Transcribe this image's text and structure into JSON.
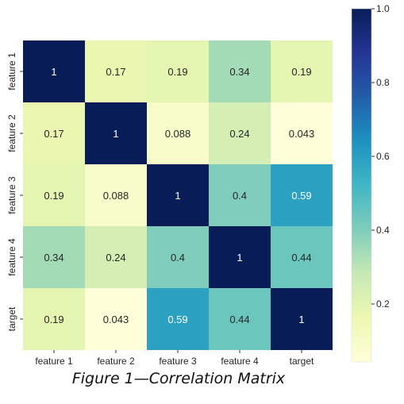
{
  "chart_data": {
    "type": "heatmap",
    "title": "",
    "xlabel": "",
    "ylabel": "",
    "x_categories": [
      "feature 1",
      "feature 2",
      "feature 3",
      "feature 4",
      "target"
    ],
    "y_categories": [
      "feature 1",
      "feature 2",
      "feature 3",
      "feature 4",
      "target"
    ],
    "values": [
      [
        1,
        0.17,
        0.19,
        0.34,
        0.19
      ],
      [
        0.17,
        1,
        0.088,
        0.24,
        0.043
      ],
      [
        0.19,
        0.088,
        1,
        0.4,
        0.59
      ],
      [
        0.34,
        0.24,
        0.4,
        1,
        0.44
      ],
      [
        0.19,
        0.043,
        0.59,
        0.44,
        1
      ]
    ],
    "annotations": [
      [
        "1",
        "0.17",
        "0.19",
        "0.34",
        "0.19"
      ],
      [
        "0.17",
        "1",
        "0.088",
        "0.24",
        "0.043"
      ],
      [
        "0.19",
        "0.088",
        "1",
        "0.4",
        "0.59"
      ],
      [
        "0.34",
        "0.24",
        "0.4",
        "1",
        "0.44"
      ],
      [
        "0.19",
        "0.043",
        "0.59",
        "0.44",
        "1"
      ]
    ],
    "colorscale": "YlGnBu",
    "colorbar": {
      "range": [
        0.043,
        1.0
      ],
      "ticks": [
        0.2,
        0.4,
        0.6,
        0.8,
        1.0
      ],
      "tick_labels": [
        "0.2",
        "0.4",
        "0.6",
        "0.8",
        "1.0"
      ]
    },
    "grid": false,
    "legend": "none"
  },
  "caption": "Figure 1—Correlation Matrix"
}
